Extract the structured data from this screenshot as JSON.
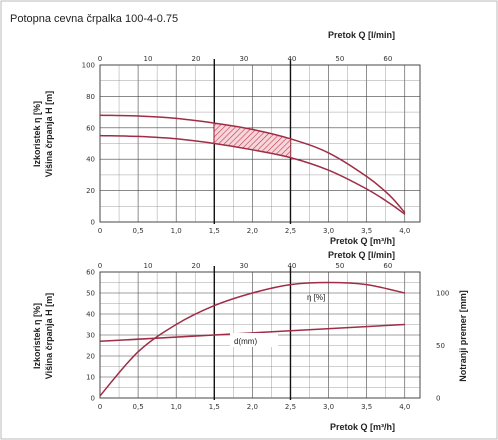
{
  "title": "Potopna cevna črpalka 100-4-0.75",
  "chart_data": [
    {
      "type": "line",
      "name": "head-curve",
      "top_axis_label": "Pretok Q [l/min]",
      "top_ticks": [
        "0",
        "10",
        "20",
        "30",
        "40",
        "50",
        "60"
      ],
      "top_range": [
        0,
        66.7
      ],
      "xlabel": "Pretok Q [m³/h]",
      "x_ticks": [
        "0",
        "0,5",
        "1,0",
        "1,5",
        "2,0",
        "2,5",
        "3,0",
        "3,5",
        "4,0"
      ],
      "xlim": [
        0,
        4.2
      ],
      "ylabel_1": "Izkoristek η [%]",
      "ylabel_2": "Višina črpanja H [m]",
      "y_ticks": [
        "0",
        "20",
        "40",
        "60",
        "80",
        "100"
      ],
      "ylim": [
        0,
        100
      ],
      "grid": true,
      "series": [
        {
          "x": [
            0,
            0.5,
            1.0,
            1.5,
            2.0,
            2.5,
            3.0,
            3.5,
            3.8,
            4.0
          ],
          "values": [
            68,
            67.5,
            66,
            63,
            59,
            53,
            44,
            29,
            17,
            6
          ]
        },
        {
          "x": [
            0,
            0.5,
            1.0,
            1.5,
            2.0,
            2.5,
            3.0,
            3.5,
            3.8,
            4.0
          ],
          "values": [
            55,
            54.5,
            53,
            50,
            46,
            41,
            33,
            21,
            12,
            5
          ]
        }
      ],
      "shaded_region": {
        "x_from": 1.5,
        "x_to": 2.5
      }
    },
    {
      "type": "line",
      "name": "efficiency-diameter",
      "top_axis_label": "Pretok Q [l/min]",
      "top_ticks": [
        "0",
        "10",
        "20",
        "30",
        "40",
        "50",
        "60"
      ],
      "top_range": [
        0,
        66.7
      ],
      "xlabel": "Pretok Q [m³/h]",
      "x_ticks": [
        "0",
        "0,5",
        "1,0",
        "1,5",
        "2,0",
        "2,5",
        "3,0",
        "3,5",
        "4,0"
      ],
      "xlim": [
        0,
        4.2
      ],
      "ylabel_1": "Izkoristek η [%]",
      "ylabel_2": "Višina črpanja H [m]",
      "y_ticks": [
        "0",
        "10",
        "20",
        "30",
        "40",
        "50",
        "60"
      ],
      "ylim": [
        0,
        60
      ],
      "y2label": "Notranji premer [mm]",
      "y2_ticks": [
        "0",
        "50",
        "100"
      ],
      "y2lim": [
        0,
        120
      ],
      "grid": true,
      "series": [
        {
          "name": "η [%]",
          "x": [
            0,
            0.5,
            1.0,
            1.5,
            2.0,
            2.5,
            3.0,
            3.5,
            4.0
          ],
          "values": [
            1,
            22,
            35,
            44,
            50,
            54,
            55,
            54,
            50
          ]
        },
        {
          "name": "d(mm)",
          "x": [
            0,
            4.0
          ],
          "values": [
            27,
            35
          ]
        }
      ]
    }
  ]
}
